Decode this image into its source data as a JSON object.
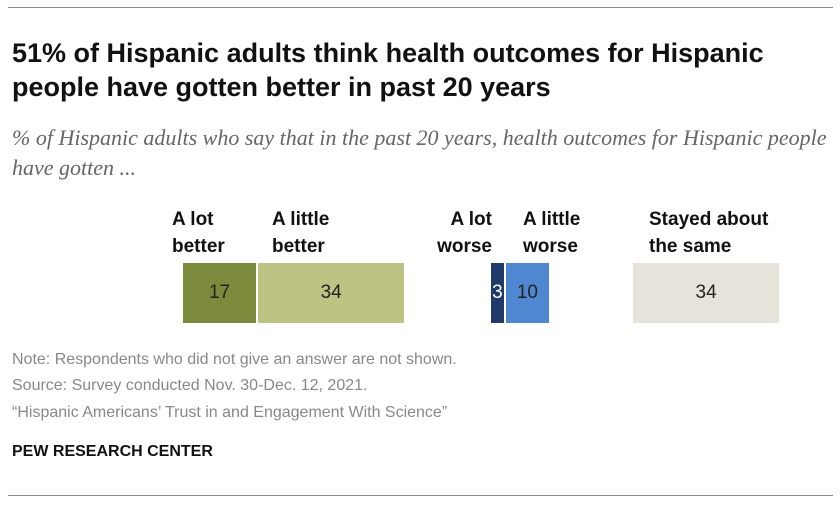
{
  "chart_data": {
    "type": "bar",
    "title": "51% of Hispanic adults think health outcomes for Hispanic people have gotten better in past 20 years",
    "subtitle": "% of Hispanic adults who say that in the past 20 years, health outcomes for Hispanic people have gotten ...",
    "series": [
      {
        "name": "A lot better",
        "color": "#7b8b3b",
        "values": [
          17
        ]
      },
      {
        "name": "A little better",
        "color": "#bcc383",
        "values": [
          34
        ]
      },
      {
        "name": "A lot worse",
        "color": "#1f3a6b",
        "values": [
          3
        ]
      },
      {
        "name": "A little worse",
        "color": "#4f87d0",
        "values": [
          10
        ]
      },
      {
        "name": "Stayed about the same",
        "color": "#e6e3da",
        "values": [
          34
        ]
      }
    ]
  },
  "note": "Note: Respondents who did not give an answer are not shown.",
  "source": "Source: Survey conducted Nov. 30-Dec. 12, 2021.",
  "report": "“Hispanic Americans’ Trust in and Engagement With Science”",
  "footer": "PEW RESEARCH CENTER"
}
